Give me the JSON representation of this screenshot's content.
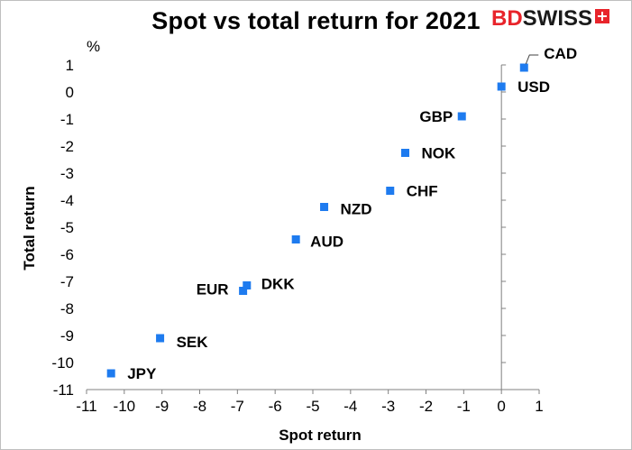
{
  "chart_data": {
    "type": "scatter",
    "title": "Spot vs total return for 2021",
    "xlabel": "Spot return",
    "ylabel": "Total return",
    "y_unit": "%",
    "xlim": [
      -11,
      1
    ],
    "ylim": [
      -11,
      1
    ],
    "x_ticks": [
      "-11",
      "-10",
      "-9",
      "-8",
      "-7",
      "-6",
      "-5",
      "-4",
      "-3",
      "-2",
      "-1",
      "0",
      "1"
    ],
    "y_ticks": [
      "1",
      "0",
      "-1",
      "-2",
      "-3",
      "-4",
      "-5",
      "-6",
      "-7",
      "-8",
      "-9",
      "-10",
      "-11"
    ],
    "grid": false,
    "marker_color": "#1e7bef",
    "points": [
      {
        "label": "CAD",
        "x": 0.6,
        "y": 0.9
      },
      {
        "label": "USD",
        "x": 0.0,
        "y": 0.2
      },
      {
        "label": "GBP",
        "x": -1.05,
        "y": -0.9
      },
      {
        "label": "NOK",
        "x": -2.55,
        "y": -2.25
      },
      {
        "label": "CHF",
        "x": -2.95,
        "y": -3.65
      },
      {
        "label": "NZD",
        "x": -4.7,
        "y": -4.25
      },
      {
        "label": "AUD",
        "x": -5.45,
        "y": -5.45
      },
      {
        "label": "DKK",
        "x": -6.75,
        "y": -7.15
      },
      {
        "label": "EUR",
        "x": -6.85,
        "y": -7.35
      },
      {
        "label": "SEK",
        "x": -9.05,
        "y": -9.1
      },
      {
        "label": "JPY",
        "x": -10.35,
        "y": -10.4
      }
    ]
  },
  "logo": {
    "part1": "BD",
    "part2": "SWISS"
  }
}
